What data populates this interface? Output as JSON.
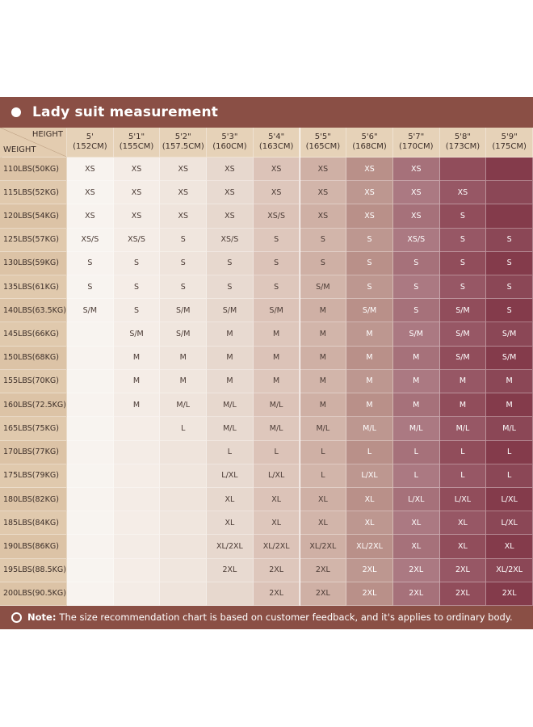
{
  "header": {
    "title": "Lady suit measurement"
  },
  "table": {
    "corner": {
      "height": "HEIGHT",
      "weight": "WEIGHT"
    },
    "columns": [
      {
        "height": "5'",
        "cm": "(152CM)"
      },
      {
        "height": "5'1\"",
        "cm": "(155CM)"
      },
      {
        "height": "5'2\"",
        "cm": "(157.5CM)"
      },
      {
        "height": "5'3\"",
        "cm": "(160CM)"
      },
      {
        "height": "5'4\"",
        "cm": "(163CM)"
      },
      {
        "height": "5'5\"",
        "cm": "(165CM)"
      },
      {
        "height": "5'6\"",
        "cm": "(168CM)"
      },
      {
        "height": "5'7\"",
        "cm": "(170CM)"
      },
      {
        "height": "5'8\"",
        "cm": "(173CM)"
      },
      {
        "height": "5'9\"",
        "cm": "(175CM)"
      }
    ],
    "rows": [
      {
        "weight": "110LBS(50KG)",
        "sizes": [
          "XS",
          "XS",
          "XS",
          "XS",
          "XS",
          "XS",
          "XS",
          "XS",
          null,
          null
        ]
      },
      {
        "weight": "115LBS(52KG)",
        "sizes": [
          "XS",
          "XS",
          "XS",
          "XS",
          "XS",
          "XS",
          "XS",
          "XS",
          "XS",
          null
        ]
      },
      {
        "weight": "120LBS(54KG)",
        "sizes": [
          "XS",
          "XS",
          "XS",
          "XS",
          "XS/S",
          "XS",
          "XS",
          "XS",
          "S",
          null
        ]
      },
      {
        "weight": "125LBS(57KG)",
        "sizes": [
          "XS/S",
          "XS/S",
          "S",
          "XS/S",
          "S",
          "S",
          "S",
          "XS/S",
          "S",
          "S"
        ]
      },
      {
        "weight": "130LBS(59KG)",
        "sizes": [
          "S",
          "S",
          "S",
          "S",
          "S",
          "S",
          "S",
          "S",
          "S",
          "S"
        ]
      },
      {
        "weight": "135LBS(61KG)",
        "sizes": [
          "S",
          "S",
          "S",
          "S",
          "S",
          "S/M",
          "S",
          "S",
          "S",
          "S"
        ]
      },
      {
        "weight": "140LBS(63.5KG)",
        "sizes": [
          "S/M",
          "S",
          "S/M",
          "S/M",
          "S/M",
          "M",
          "S/M",
          "S",
          "S/M",
          "S"
        ]
      },
      {
        "weight": "145LBS(66KG)",
        "sizes": [
          null,
          "S/M",
          "S/M",
          "M",
          "M",
          "M",
          "M",
          "S/M",
          "S/M",
          "S/M"
        ]
      },
      {
        "weight": "150LBS(68KG)",
        "sizes": [
          null,
          "M",
          "M",
          "M",
          "M",
          "M",
          "M",
          "M",
          "S/M",
          "S/M"
        ]
      },
      {
        "weight": "155LBS(70KG)",
        "sizes": [
          null,
          "M",
          "M",
          "M",
          "M",
          "M",
          "M",
          "M",
          "M",
          "M"
        ]
      },
      {
        "weight": "160LBS(72.5KG)",
        "sizes": [
          null,
          "M",
          "M/L",
          "M/L",
          "M/L",
          "M",
          "M",
          "M",
          "M",
          "M"
        ]
      },
      {
        "weight": "165LBS(75KG)",
        "sizes": [
          null,
          null,
          "L",
          "M/L",
          "M/L",
          "M/L",
          "M/L",
          "M/L",
          "M/L",
          "M/L"
        ]
      },
      {
        "weight": "170LBS(77KG)",
        "sizes": [
          null,
          null,
          null,
          "L",
          "L",
          "L",
          "L",
          "L",
          "L",
          "L"
        ]
      },
      {
        "weight": "175LBS(79KG)",
        "sizes": [
          null,
          null,
          null,
          "L/XL",
          "L/XL",
          "L",
          "L/XL",
          "L",
          "L",
          "L"
        ]
      },
      {
        "weight": "180LBS(82KG)",
        "sizes": [
          null,
          null,
          null,
          "XL",
          "XL",
          "XL",
          "XL",
          "L/XL",
          "L/XL",
          "L/XL"
        ]
      },
      {
        "weight": "185LBS(84KG)",
        "sizes": [
          null,
          null,
          null,
          "XL",
          "XL",
          "XL",
          "XL",
          "XL",
          "XL",
          "L/XL"
        ]
      },
      {
        "weight": "190LBS(86KG)",
        "sizes": [
          null,
          null,
          null,
          "XL/2XL",
          "XL/2XL",
          "XL/2XL",
          "XL/2XL",
          "XL",
          "XL",
          "XL"
        ]
      },
      {
        "weight": "195LBS(88.5KG)",
        "sizes": [
          null,
          null,
          null,
          "2XL",
          "2XL",
          "2XL",
          "2XL",
          "2XL",
          "2XL",
          "XL/2XL"
        ]
      },
      {
        "weight": "200LBS(90.5KG)",
        "sizes": [
          null,
          null,
          null,
          null,
          "2XL",
          "2XL",
          "2XL",
          "2XL",
          "2XL",
          "2XL"
        ]
      }
    ]
  },
  "note": {
    "label": "Note:",
    "text": "The size recommendation chart is based on customer feedback, and it's applies to ordinary body."
  }
}
